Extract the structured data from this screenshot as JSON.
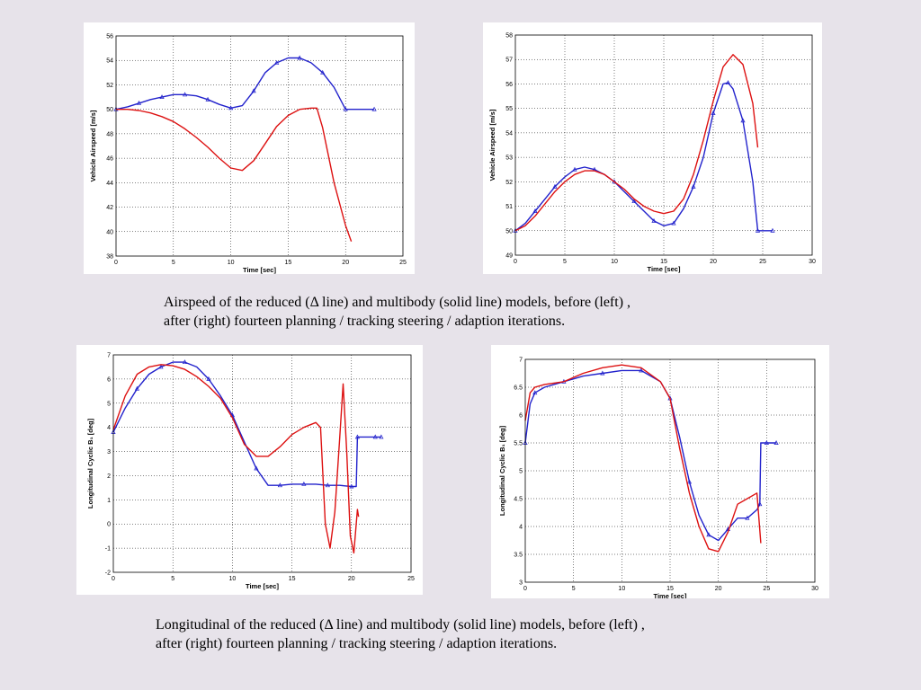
{
  "captions": {
    "airspeed_line1": "Airspeed of the reduced  (Δ line) and multibody (solid line) models, before (left) ,",
    "airspeed_line2": "after (right) fourteen planning / tracking steering / adaption iterations.",
    "longitudinal_line1": "Longitudinal of the reduced  (Δ line) and multibody (solid line) models, before (left) ,",
    "longitudinal_line2": "after (right) fourteen planning / tracking steering / adaption iterations."
  },
  "colors": {
    "reduced": "#2222cc",
    "multibody": "#dd1111"
  },
  "chart_data": [
    {
      "id": "airspeed-before",
      "type": "line",
      "title": "",
      "xlabel": "Time [sec]",
      "ylabel": "Vehicle Airspeed [m/s]",
      "xlim": [
        0,
        25
      ],
      "ylim": [
        38,
        56
      ],
      "xticks": [
        0,
        5,
        10,
        15,
        20,
        25
      ],
      "yticks": [
        38,
        40,
        42,
        44,
        46,
        48,
        50,
        52,
        54,
        56
      ],
      "grid": true,
      "series": [
        {
          "style": "reduced",
          "marker": "triangle",
          "x": [
            0,
            1,
            2,
            3,
            4,
            5,
            6,
            7,
            8,
            9,
            10,
            11,
            12,
            13,
            14,
            15,
            16,
            17,
            18,
            19,
            20,
            21,
            22.5
          ],
          "y": [
            50,
            50.2,
            50.5,
            50.8,
            51.0,
            51.2,
            51.2,
            51.1,
            50.8,
            50.4,
            50.1,
            50.3,
            51.5,
            53.0,
            53.8,
            54.2,
            54.2,
            53.8,
            53.0,
            51.8,
            50.0,
            50.0,
            50.0
          ]
        },
        {
          "style": "multibody",
          "marker": "none",
          "x": [
            0,
            1,
            2,
            3,
            4,
            5,
            6,
            7,
            8,
            9,
            10,
            11,
            12,
            13,
            14,
            15,
            16,
            17,
            17.5,
            18,
            19,
            20,
            20.5
          ],
          "y": [
            50,
            50,
            49.9,
            49.7,
            49.4,
            49.0,
            48.4,
            47.7,
            46.9,
            46.0,
            45.2,
            45.0,
            45.8,
            47.2,
            48.6,
            49.5,
            50.0,
            50.1,
            50.1,
            48.5,
            44.0,
            40.5,
            39.2
          ]
        }
      ]
    },
    {
      "id": "airspeed-after",
      "type": "line",
      "title": "",
      "xlabel": "Time [sec]",
      "ylabel": "Vehicle Airspeed [m/s]",
      "xlim": [
        0,
        30
      ],
      "ylim": [
        49,
        58
      ],
      "xticks": [
        0,
        5,
        10,
        15,
        20,
        25,
        30
      ],
      "yticks": [
        49,
        50,
        51,
        52,
        53,
        54,
        55,
        56,
        57,
        58
      ],
      "grid": true,
      "series": [
        {
          "style": "reduced",
          "marker": "triangle",
          "x": [
            0,
            1,
            2,
            3,
            4,
            5,
            6,
            7,
            8,
            9,
            10,
            11,
            12,
            13,
            14,
            15,
            16,
            17,
            18,
            19,
            20,
            21,
            21.5,
            22,
            23,
            24,
            24.5,
            25,
            26
          ],
          "y": [
            50,
            50.3,
            50.8,
            51.3,
            51.8,
            52.2,
            52.5,
            52.6,
            52.5,
            52.3,
            52.0,
            51.6,
            51.2,
            50.8,
            50.4,
            50.2,
            50.3,
            50.9,
            51.8,
            53.0,
            54.8,
            56.0,
            56.05,
            55.8,
            54.5,
            52.0,
            50.0,
            50.0,
            50.0
          ]
        },
        {
          "style": "multibody",
          "marker": "none",
          "x": [
            0,
            1,
            2,
            3,
            4,
            5,
            6,
            7,
            8,
            9,
            10,
            11,
            12,
            13,
            14,
            15,
            16,
            17,
            18,
            19,
            20,
            21,
            22,
            23,
            24,
            24.5
          ],
          "y": [
            50,
            50.2,
            50.6,
            51.1,
            51.6,
            52.0,
            52.3,
            52.45,
            52.45,
            52.3,
            52.0,
            51.7,
            51.3,
            51.0,
            50.8,
            50.7,
            50.8,
            51.3,
            52.3,
            53.7,
            55.3,
            56.7,
            57.2,
            56.8,
            55.2,
            53.4
          ]
        }
      ]
    },
    {
      "id": "longitudinal-before",
      "type": "line",
      "title": "",
      "xlabel": "Time [sec]",
      "ylabel": "Longitudinal Cyclic B₁ [deg]",
      "xlim": [
        0,
        25
      ],
      "ylim": [
        -2,
        7
      ],
      "xticks": [
        0,
        5,
        10,
        15,
        20,
        25
      ],
      "yticks": [
        -2,
        -1,
        0,
        1,
        2,
        3,
        4,
        5,
        6,
        7
      ],
      "grid": true,
      "series": [
        {
          "style": "reduced",
          "marker": "triangle",
          "x": [
            0,
            1,
            2,
            3,
            4,
            5,
            6,
            7,
            8,
            9,
            10,
            11,
            12,
            13,
            14,
            15,
            16,
            17,
            18,
            19,
            20,
            20.4,
            20.5,
            21,
            22,
            22.5
          ],
          "y": [
            3.8,
            4.8,
            5.6,
            6.2,
            6.5,
            6.7,
            6.7,
            6.5,
            6.0,
            5.3,
            4.5,
            3.4,
            2.3,
            1.6,
            1.6,
            1.65,
            1.65,
            1.65,
            1.6,
            1.6,
            1.55,
            1.55,
            3.6,
            3.6,
            3.6,
            3.6
          ]
        },
        {
          "style": "multibody",
          "marker": "none",
          "x": [
            0,
            1,
            2,
            3,
            4,
            5,
            6,
            7,
            8,
            9,
            10,
            11,
            12,
            13,
            14,
            15,
            16,
            17,
            17.4,
            17.8,
            18.2,
            18.6,
            19.0,
            19.3,
            19.6,
            19.9,
            20.2,
            20.5,
            20.6
          ],
          "y": [
            3.9,
            5.3,
            6.2,
            6.5,
            6.6,
            6.55,
            6.4,
            6.1,
            5.7,
            5.2,
            4.4,
            3.3,
            2.8,
            2.8,
            3.2,
            3.7,
            4.0,
            4.2,
            4.0,
            0.0,
            -1.0,
            0.5,
            3.5,
            5.8,
            3.0,
            -0.5,
            -1.2,
            0.6,
            0.3
          ]
        }
      ]
    },
    {
      "id": "longitudinal-after",
      "type": "line",
      "title": "",
      "xlabel": "Time [sec]",
      "ylabel": "Longitudinal Cyclic B₁ [deg]",
      "xlim": [
        0,
        30
      ],
      "ylim": [
        3,
        7
      ],
      "xticks": [
        0,
        5,
        10,
        15,
        20,
        25,
        30
      ],
      "yticks": [
        3,
        3.5,
        4,
        4.5,
        5,
        5.5,
        6,
        6.5,
        7
      ],
      "grid": true,
      "series": [
        {
          "style": "reduced",
          "marker": "triangle",
          "x": [
            0,
            0.5,
            1,
            2,
            4,
            6,
            8,
            10,
            12,
            14,
            15,
            16,
            17,
            18,
            19,
            20,
            21,
            22,
            23,
            24,
            24.3,
            24.4,
            25,
            26
          ],
          "y": [
            5.5,
            6.2,
            6.4,
            6.5,
            6.6,
            6.7,
            6.75,
            6.8,
            6.8,
            6.6,
            6.3,
            5.6,
            4.8,
            4.2,
            3.85,
            3.75,
            3.95,
            4.15,
            4.15,
            4.3,
            4.4,
            5.5,
            5.5,
            5.5
          ]
        },
        {
          "style": "multibody",
          "marker": "none",
          "x": [
            0,
            0.5,
            1,
            2,
            4,
            6,
            8,
            10,
            12,
            14,
            15,
            16,
            17,
            18,
            19,
            20,
            21,
            22,
            23,
            24,
            24.4
          ],
          "y": [
            5.9,
            6.4,
            6.5,
            6.55,
            6.6,
            6.75,
            6.85,
            6.9,
            6.85,
            6.6,
            6.3,
            5.4,
            4.6,
            4.0,
            3.6,
            3.55,
            3.9,
            4.4,
            4.5,
            4.6,
            3.7
          ]
        }
      ]
    }
  ]
}
